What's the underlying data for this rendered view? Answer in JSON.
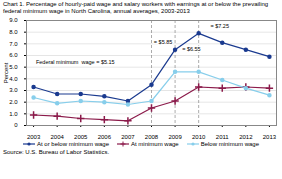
{
  "chart_data": {
    "type": "line",
    "title": "Chart 1. Percentage of hourly-paid wage and salary workers with earnings at or below the prevailing",
    "subtitle": "federal minimum wage in North Carolina, annual averages, 2003-2013",
    "caption": "Source: U.S. Bureau of Labor Statistics.",
    "ylabel": "Percent",
    "x": [
      2003,
      2004,
      2005,
      2006,
      2007,
      2008,
      2009,
      2010,
      2011,
      2012,
      2013
    ],
    "series": [
      {
        "name": "At or below minimum wage",
        "color": "#1a3a8f",
        "marker": "circle",
        "values": [
          3.3,
          2.7,
          2.7,
          2.5,
          2.1,
          3.5,
          6.5,
          7.9,
          7.1,
          6.5,
          5.9
        ]
      },
      {
        "name": "At minimum wage",
        "color": "#8b1a4a",
        "marker": "plus",
        "values": [
          0.9,
          0.8,
          0.6,
          0.5,
          0.4,
          1.5,
          2.1,
          3.3,
          3.2,
          3.3,
          3.2
        ]
      },
      {
        "name": "Below minimum wage",
        "color": "#87ceeb",
        "marker": "circle",
        "values": [
          2.4,
          1.9,
          2.1,
          2.0,
          1.8,
          2.1,
          4.6,
          4.6,
          3.9,
          3.2,
          2.6
        ]
      }
    ],
    "xlim": [
      2002.7,
      2013.3
    ],
    "xticks": [
      2003,
      2004,
      2005,
      2006,
      2007,
      2008,
      2009,
      2010,
      2011,
      2012,
      2013
    ],
    "ylim": [
      0,
      9.0
    ],
    "yticks": [
      0,
      {
        "value": 1,
        "label": "1.0"
      },
      {
        "value": 2,
        "label": "2.0"
      },
      {
        "value": 3,
        "label": "3.0"
      },
      {
        "value": 4,
        "label": "4.0"
      },
      {
        "value": 5,
        "label": "5.0"
      },
      {
        "value": 6,
        "label": "6.0"
      },
      {
        "value": 7,
        "label": "7.0"
      },
      {
        "value": 8,
        "label": "8.0"
      },
      {
        "value": 9,
        "label": "9.0"
      }
    ],
    "grid": true,
    "legend": "bottom",
    "vlines": [
      2008,
      2009,
      2010
    ],
    "annotations": [
      {
        "text": "= $5.85",
        "x": 2008.1,
        "y": 7.15
      },
      {
        "text": "= $6.55",
        "x": 2009.3,
        "y": 6.5
      },
      {
        "text": "= $7.25",
        "x": 2010.5,
        "y": 8.55
      },
      {
        "text": "Federal minimum  wage = $5.15",
        "x": 2003.1,
        "y": 5.4
      }
    ]
  }
}
